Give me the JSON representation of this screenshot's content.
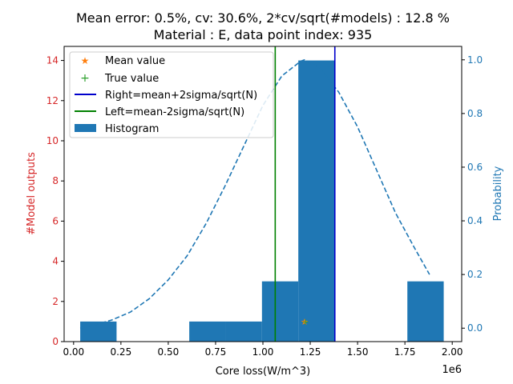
{
  "chart_data": {
    "type": "bar",
    "title_line1": "Mean error: 0.5%, cv: 30.6%, 2*cv/sqrt(#models) : 12.8 %",
    "title_line2": "Material : E, data point index: 935",
    "xlabel": "Core loss(W/m^3)",
    "x_offset_label": "1e6",
    "ylabel_left": "#Model outputs",
    "ylabel_right": "Probability",
    "xlim": [
      -0.05,
      2.05
    ],
    "ylim_left": [
      0,
      14.7
    ],
    "ylim_right": [
      -0.05,
      1.05
    ],
    "x_ticks": [
      0.0,
      0.25,
      0.5,
      0.75,
      1.0,
      1.25,
      1.5,
      1.75,
      2.0
    ],
    "x_tick_labels": [
      "0.00",
      "0.25",
      "0.50",
      "0.75",
      "1.00",
      "1.25",
      "1.50",
      "1.75",
      "2.00"
    ],
    "y_left_ticks": [
      0,
      2,
      4,
      6,
      8,
      10,
      12,
      14
    ],
    "y_left_tick_labels": [
      "0",
      "2",
      "4",
      "6",
      "8",
      "10",
      "12",
      "14"
    ],
    "y_right_ticks": [
      0.0,
      0.2,
      0.4,
      0.6,
      0.8,
      1.0
    ],
    "y_right_tick_labels": [
      "0.0",
      "0.2",
      "0.4",
      "0.6",
      "0.8",
      "1.0"
    ],
    "histogram": {
      "name": "Histogram",
      "color": "#1f77b4",
      "bins": [
        {
          "x0": 0.035,
          "x1": 0.227,
          "count": 1
        },
        {
          "x0": 0.227,
          "x1": 0.419,
          "count": 0
        },
        {
          "x0": 0.419,
          "x1": 0.611,
          "count": 0
        },
        {
          "x0": 0.611,
          "x1": 0.803,
          "count": 1
        },
        {
          "x0": 0.803,
          "x1": 0.995,
          "count": 1
        },
        {
          "x0": 0.995,
          "x1": 1.187,
          "count": 3
        },
        {
          "x0": 1.187,
          "x1": 1.379,
          "count": 14
        },
        {
          "x0": 1.379,
          "x1": 1.571,
          "count": 0
        },
        {
          "x0": 1.571,
          "x1": 1.763,
          "count": 0
        },
        {
          "x0": 1.763,
          "x1": 1.955,
          "count": 3
        }
      ]
    },
    "probability_curve": {
      "color": "#1f77b4",
      "x": [
        0.035,
        0.1,
        0.2,
        0.3,
        0.4,
        0.5,
        0.6,
        0.7,
        0.8,
        0.9,
        1.0,
        1.1,
        1.2,
        1.22,
        1.3,
        1.4,
        1.5,
        1.6,
        1.7,
        1.8,
        1.88
      ],
      "y": [
        0.0,
        0.01,
        0.03,
        0.06,
        0.11,
        0.18,
        0.27,
        0.39,
        0.53,
        0.68,
        0.83,
        0.94,
        0.995,
        1.0,
        0.97,
        0.88,
        0.75,
        0.59,
        0.43,
        0.3,
        0.2
      ]
    },
    "mean_value": {
      "name": "Mean value",
      "x": 1.22,
      "y": 1,
      "color": "#ff7f0e"
    },
    "true_value": {
      "name": "True value",
      "x": 1.225,
      "y": 1,
      "color": "#2ca02c"
    },
    "right_line": {
      "name": "Right=mean+2sigma/sqrt(N)",
      "x": 1.38,
      "color": "#0000cc"
    },
    "left_line": {
      "name": "Left=mean-2sigma/sqrt(N)",
      "x": 1.065,
      "color": "#008000"
    },
    "legend_position": "upper-left",
    "left_axis_color": "#d62728",
    "right_axis_color": "#1f77b4"
  }
}
